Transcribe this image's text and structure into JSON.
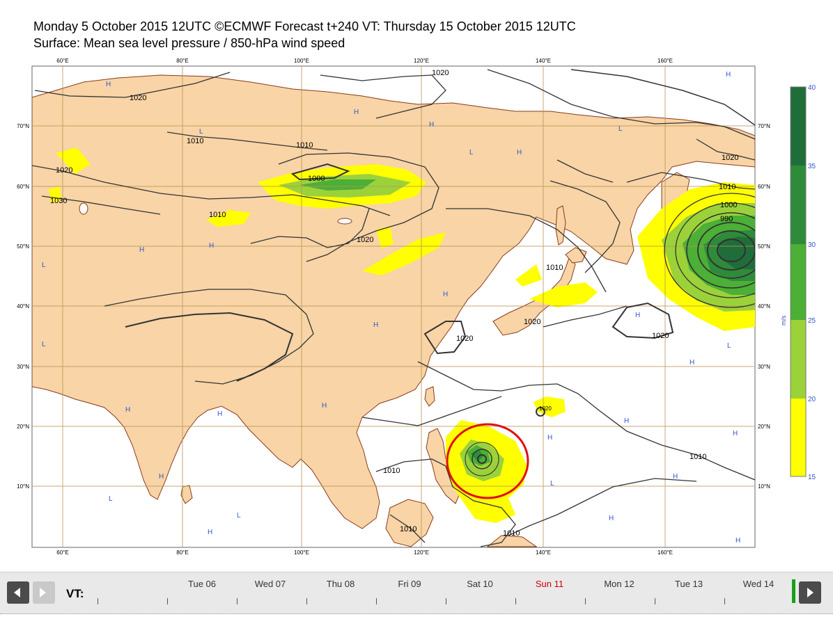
{
  "title": {
    "line1": "Monday 5 October 2015 12UTC ©ECMWF Forecast t+240 VT: Thursday 15 October 2015 12UTC",
    "line2": "Surface: Mean sea level pressure / 850-hPa wind speed"
  },
  "map": {
    "lon_labels": [
      "60°E",
      "80°E",
      "100°E",
      "120°E",
      "140°E",
      "160°E"
    ],
    "lat_labels": [
      "70°N",
      "60°N",
      "50°N",
      "40°N",
      "30°N",
      "20°N",
      "10°N"
    ],
    "colors": {
      "land": "#f8d4a6",
      "sea": "#ffffff",
      "grid": "#b99452",
      "isobar": "#333333",
      "coast": "#8b3a1a",
      "hl_marks": "#3355cc",
      "circle": "#e01010"
    },
    "isobar_labels": [
      "1020",
      "1020",
      "1020",
      "1010",
      "1030",
      "1010",
      "1010",
      "1000",
      "1020",
      "1020",
      "1020",
      "1010",
      "1000",
      "990",
      "1020",
      "1020",
      "1020",
      "1010",
      "1010",
      "1010",
      "1010",
      "1010"
    ],
    "high_low_marks": [
      "H",
      "L"
    ],
    "annotation": "red circle around typhoon east of the Philippines"
  },
  "legend": {
    "unit": "m/s",
    "ticks": [
      "40",
      "35",
      "30",
      "25",
      "20",
      "15"
    ],
    "bands": [
      {
        "from": 35,
        "to": 40,
        "color": "#1f6e3a"
      },
      {
        "from": 30,
        "to": 35,
        "color": "#2e8b3a"
      },
      {
        "from": 25,
        "to": 30,
        "color": "#4caf36"
      },
      {
        "from": 20,
        "to": 25,
        "color": "#9bd23a"
      },
      {
        "from": 15,
        "to": 20,
        "color": "#ffff00"
      }
    ]
  },
  "timeline": {
    "label": "VT:",
    "days": [
      "Tue 06",
      "Wed 07",
      "Thu 08",
      "Fri 09",
      "Sat 10",
      "Sun 11",
      "Mon 12",
      "Tue 13",
      "Wed 14"
    ],
    "highlighted_day": "Sun 11"
  }
}
